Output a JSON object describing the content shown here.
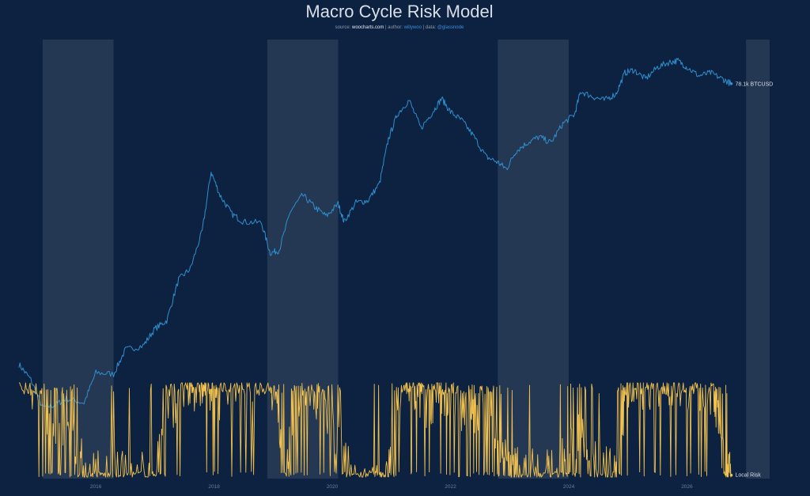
{
  "title": "Macro Cycle Risk Model",
  "subtitle": {
    "prefix": "source: ",
    "source": "woocharts.com",
    "sep1": " | author: ",
    "author": "willywoo",
    "sep2": " | data: ",
    "data": "@glassnode"
  },
  "colors": {
    "background": "#0c2240",
    "price": "#2f8fd0",
    "risk": "#f2c14e",
    "bands": "#ffffff"
  },
  "chart_data": {
    "type": "line",
    "title": "Macro Cycle Risk Model",
    "x_ticks": [
      "2016",
      "2018",
      "2020",
      "2022",
      "2024",
      "2026"
    ],
    "x_range": [
      2014.7,
      2027.6
    ],
    "price_scale": "log",
    "shaded_periods": [
      [
        2015.1,
        2016.3
      ],
      [
        2018.9,
        2020.1
      ],
      [
        2022.8,
        2024.0
      ],
      [
        2027.0,
        2027.4
      ]
    ],
    "series": [
      {
        "name": "BTCUSD",
        "end_label": "78.1k BTCUSD",
        "x": [
          2014.7,
          2014.9,
          2015.1,
          2015.3,
          2015.5,
          2015.8,
          2016.0,
          2016.3,
          2016.5,
          2016.8,
          2017.0,
          2017.2,
          2017.4,
          2017.6,
          2017.8,
          2017.95,
          2018.1,
          2018.3,
          2018.5,
          2018.8,
          2018.95,
          2019.1,
          2019.3,
          2019.5,
          2019.7,
          2019.9,
          2020.1,
          2020.2,
          2020.4,
          2020.6,
          2020.8,
          2020.95,
          2021.1,
          2021.3,
          2021.5,
          2021.7,
          2021.85,
          2022.0,
          2022.2,
          2022.4,
          2022.6,
          2022.8,
          2022.95,
          2023.1,
          2023.3,
          2023.5,
          2023.7,
          2023.9,
          2024.1,
          2024.2,
          2024.4,
          2024.6,
          2024.8,
          2024.95,
          2025.1,
          2025.3,
          2025.5,
          2025.7,
          2025.85,
          2026.0,
          2026.2,
          2026.4,
          2026.6,
          2026.75
        ],
        "values": [
          500,
          380,
          230,
          240,
          270,
          250,
          430,
          420,
          650,
          700,
          950,
          1100,
          2300,
          2800,
          5500,
          16000,
          10500,
          7500,
          6500,
          6400,
          3700,
          3900,
          8000,
          10500,
          8500,
          7200,
          9000,
          6500,
          9200,
          9500,
          13000,
          29000,
          45000,
          58000,
          35000,
          47000,
          60000,
          47000,
          40000,
          30000,
          21000,
          19000,
          16800,
          23000,
          27000,
          30000,
          27000,
          38000,
          45000,
          68000,
          62000,
          58000,
          65000,
          95000,
          100000,
          85000,
          105000,
          115000,
          118000,
          105000,
          90000,
          95000,
          85000,
          78100
        ]
      },
      {
        "name": "Local Risk",
        "end_label": "Local Risk",
        "x": [
          2014.7,
          2015.0,
          2015.3,
          2015.55,
          2015.8,
          2016.1,
          2016.5,
          2016.9,
          2017.2,
          2017.5,
          2017.7,
          2017.9,
          2018.1,
          2018.5,
          2018.95,
          2019.2,
          2019.4,
          2019.7,
          2019.95,
          2020.3,
          2020.7,
          2020.95,
          2021.2,
          2021.4,
          2021.6,
          2021.8,
          2022.0,
          2022.3,
          2022.5,
          2022.75,
          2023.0,
          2023.2,
          2023.5,
          2023.8,
          2024.0,
          2024.2,
          2024.5,
          2024.8,
          2025.0,
          2025.3,
          2025.6,
          2025.9,
          2026.2,
          2026.45,
          2026.65,
          2026.75
        ],
        "values": [
          0.92,
          0.8,
          0.4,
          0.55,
          0.1,
          0.05,
          0.03,
          0.05,
          0.7,
          0.9,
          0.95,
          0.98,
          0.85,
          0.95,
          0.97,
          0.2,
          0.6,
          0.8,
          0.6,
          0.05,
          0.05,
          0.05,
          0.97,
          0.95,
          0.7,
          0.9,
          0.85,
          0.6,
          0.7,
          0.5,
          0.1,
          0.05,
          0.05,
          0.05,
          0.3,
          0.5,
          0.1,
          0.05,
          0.96,
          0.97,
          0.95,
          0.97,
          0.9,
          0.85,
          0.1,
          0.02
        ]
      }
    ],
    "xlabel": "",
    "ylabel": "",
    "grid": false
  }
}
